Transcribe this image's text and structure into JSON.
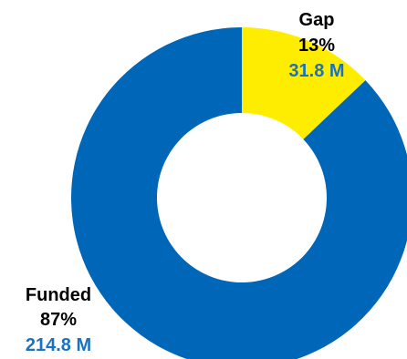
{
  "chart_data": {
    "type": "pie",
    "variant": "donut",
    "slices": [
      {
        "label": "Gap",
        "percent_label": "13%",
        "value_label": "31.8 M",
        "value": 31.8,
        "color": "#FFED00"
      },
      {
        "label": "Funded",
        "percent_label": "87%",
        "value_label": "214.8 M",
        "value": 214.8,
        "color": "#0066B8"
      }
    ],
    "text_color": "#000000",
    "value_text_color": "#1A72C0"
  }
}
